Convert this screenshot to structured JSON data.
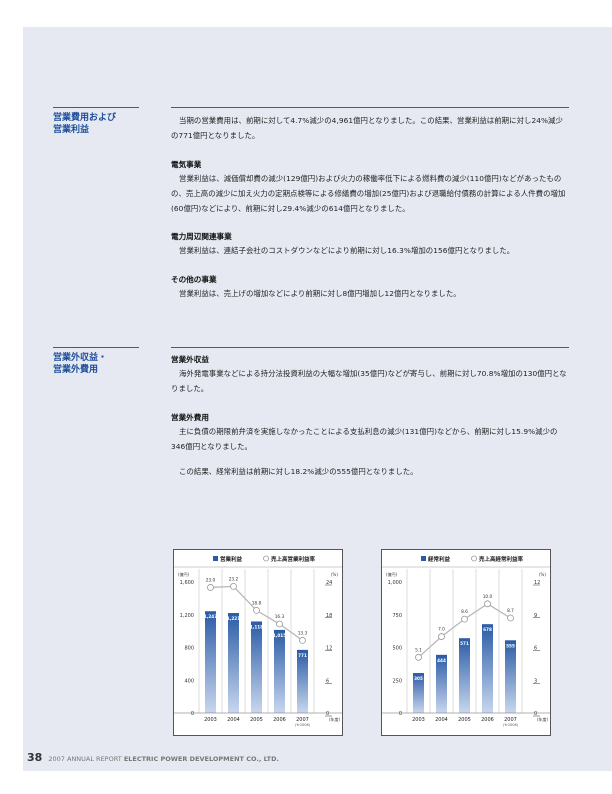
{
  "sections": [
    {
      "label": "営業費用および\n営業利益",
      "blocks": [
        {
          "heading": "",
          "text": "当期の営業費用は、前期に対して4.7%減少の4,961億円となりました。この結果、営業利益は前期に対し24%減少の771億円となりました。"
        },
        {
          "heading": "電気事業",
          "text": "営業利益は、減価償却費の減少(129億円)および火力の稼働率低下による燃料費の減少(110億円)などがあったものの、売上高の減少に加え火力の定期点検等による修繕費の増加(25億円)および退職給付債務の計算による人件費の増加(60億円)などにより、前期に対し29.4%減少の614億円となりました。"
        },
        {
          "heading": "電力周辺関連事業",
          "text": "営業利益は、連結子会社のコストダウンなどにより前期に対し16.3%増加の156億円となりました。"
        },
        {
          "heading": "その他の事業",
          "text": "営業利益は、売上げの増加などにより前期に対し8億円増加し12億円となりました。"
        }
      ]
    },
    {
      "label": "営業外収益・\n営業外費用",
      "blocks": [
        {
          "heading": "営業外収益",
          "text": "海外発電事業などによる持分法投資利益の大幅な増加(35億円)などが寄与し、前期に対し70.8%増加の130億円となりました。"
        },
        {
          "heading": "営業外費用",
          "text": "主に負債の期限前弁済を実施しなかったことによる支払利息の減少(131億円)などから、前期に対し15.9%減少の346億円となりました。"
        },
        {
          "heading": "",
          "text": "この結果、経常利益は前期に対し18.2%減少の555億円となりました。"
        }
      ]
    }
  ],
  "chart_data": [
    {
      "type": "bar",
      "legend": [
        "営業利益",
        "売上高営業利益率"
      ],
      "left_unit": "(億円)",
      "right_unit": "(%)",
      "x_unit": "(年度)",
      "categories": [
        "2003",
        "2004",
        "2005",
        "2006",
        "2007"
      ],
      "category_sub": [
        "",
        "",
        "",
        "",
        "(Yr2006)"
      ],
      "series": [
        {
          "name": "営業利益",
          "axis": "left",
          "values": [
            1243,
            1221,
            1118,
            1015,
            771
          ],
          "labels": [
            "1,243",
            "1,221",
            "1,118",
            "1,015",
            "771"
          ]
        },
        {
          "name": "売上高営業利益率",
          "axis": "right",
          "values": [
            23.0,
            23.2,
            18.8,
            16.3,
            13.3
          ],
          "labels": [
            "23.0",
            "23.2",
            "18.8",
            "16.3",
            "13.3"
          ]
        }
      ],
      "left_ticks": [
        "1,600",
        "1,200",
        "800",
        "400",
        "0"
      ],
      "right_ticks": [
        "24",
        "18",
        "12",
        "6",
        "0"
      ],
      "left_ylim": [
        0,
        1600
      ],
      "right_ylim": [
        0,
        24
      ],
      "colors": {
        "bar": "#2a5ba6",
        "line": "#b8b8b8"
      }
    },
    {
      "type": "bar",
      "legend": [
        "経常利益",
        "売上高経常利益率"
      ],
      "left_unit": "(億円)",
      "right_unit": "(%)",
      "x_unit": "(年度)",
      "categories": [
        "2003",
        "2004",
        "2005",
        "2006",
        "2007"
      ],
      "category_sub": [
        "",
        "",
        "",
        "",
        "(Yr2006)"
      ],
      "series": [
        {
          "name": "経常利益",
          "axis": "left",
          "values": [
            305,
            444,
            571,
            678,
            555
          ],
          "labels": [
            "305",
            "444",
            "571",
            "678",
            "555"
          ]
        },
        {
          "name": "売上高経常利益率",
          "axis": "right",
          "values": [
            5.1,
            7.0,
            8.6,
            10.0,
            8.7
          ],
          "labels": [
            "5.1",
            "7.0",
            "8.6",
            "10.0",
            "8.7"
          ]
        }
      ],
      "left_ticks": [
        "1,000",
        "750",
        "500",
        "250",
        "0"
      ],
      "right_ticks": [
        "12",
        "9",
        "6",
        "3",
        "0"
      ],
      "left_ylim": [
        0,
        1000
      ],
      "right_ylim": [
        0,
        12
      ],
      "colors": {
        "bar": "#2a5ba6",
        "line": "#b8b8b8"
      }
    }
  ],
  "footer": {
    "page_number": "38",
    "report": "2007 ANNUAL REPORT",
    "company": "ELECTRIC POWER DEVELOPMENT CO., LTD."
  }
}
